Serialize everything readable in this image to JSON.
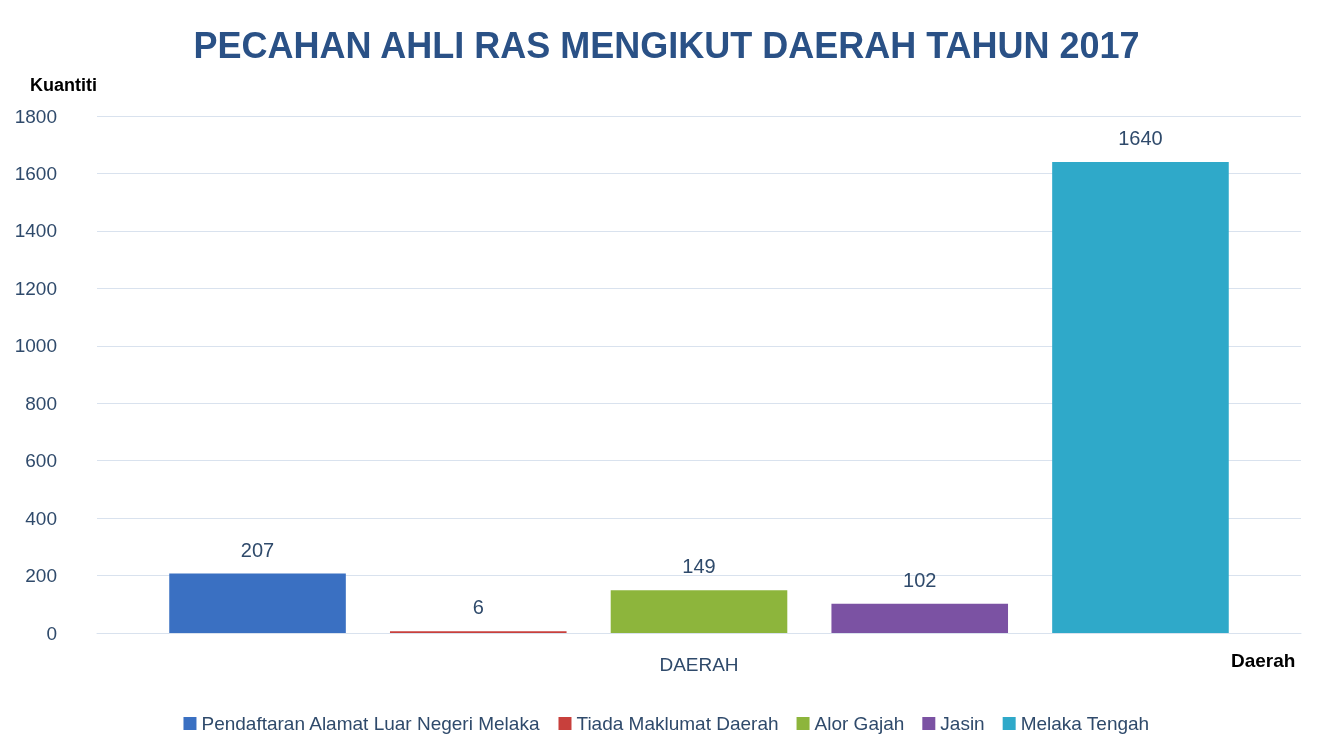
{
  "chart_data": {
    "type": "bar",
    "title": "PECAHAN AHLI RAS MENGIKUT DAERAH TAHUN 2017",
    "xlabel": "Daerah",
    "ylabel": "Kuantiti",
    "categories": [
      "DAERAH"
    ],
    "series": [
      {
        "name": "Pendaftaran Alamat Luar Negeri Melaka",
        "color": "#3a70c2",
        "values": [
          207
        ]
      },
      {
        "name": "Tiada Maklumat Daerah",
        "color": "#c8403c",
        "values": [
          6
        ]
      },
      {
        "name": "Alor Gajah",
        "color": "#8db53c",
        "values": [
          149
        ]
      },
      {
        "name": "Jasin",
        "color": "#7b52a3",
        "values": [
          102
        ]
      },
      {
        "name": "Melaka Tengah",
        "color": "#2fa9c9",
        "values": [
          1640
        ]
      }
    ],
    "ylim": [
      0,
      1800
    ],
    "yticks": [
      0,
      200,
      400,
      600,
      800,
      1000,
      1200,
      1400,
      1600,
      1800
    ],
    "grid": "y",
    "legend": "bottom",
    "data_labels": true
  }
}
